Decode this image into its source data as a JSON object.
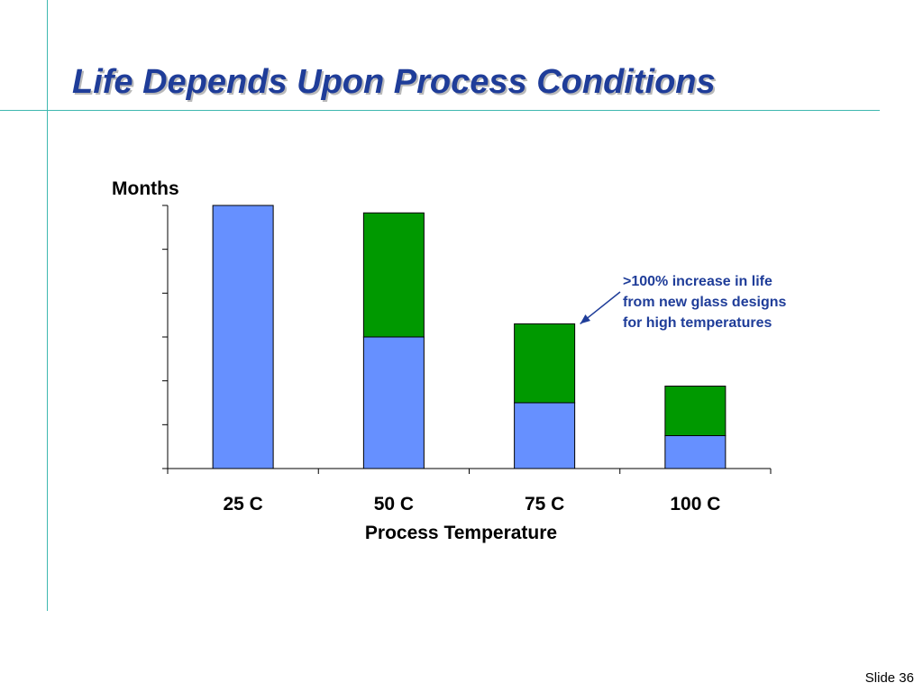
{
  "slide": {
    "title": "Life Depends Upon Process Conditions",
    "number_label": "Slide 36"
  },
  "colors": {
    "rule": "#3fb8b0",
    "title": "#1f3d99",
    "base_bar": "#6690ff",
    "increase_bar": "#009900",
    "annotation": "#1f3d99"
  },
  "chart_data": {
    "type": "bar",
    "stacked": true,
    "categories": [
      "25 C",
      "50 C",
      "75 C",
      "100 C"
    ],
    "series": [
      {
        "values": [
          6.0,
          3.0,
          1.5,
          0.75
        ],
        "color": "#6690ff"
      },
      {
        "values": [
          0,
          2.83,
          1.8,
          1.13
        ],
        "color": "#009900"
      }
    ],
    "xlabel": "Process Temperature",
    "ylabel": "Months",
    "ylim": [
      0,
      6
    ],
    "y_tick_count": 7,
    "y_tick_labels_shown": false,
    "grid": false,
    "annotation": {
      "lines": [
        ">100% increase in life",
        "from new glass designs",
        "for high temperatures"
      ],
      "points_to_category": "75 C"
    }
  }
}
